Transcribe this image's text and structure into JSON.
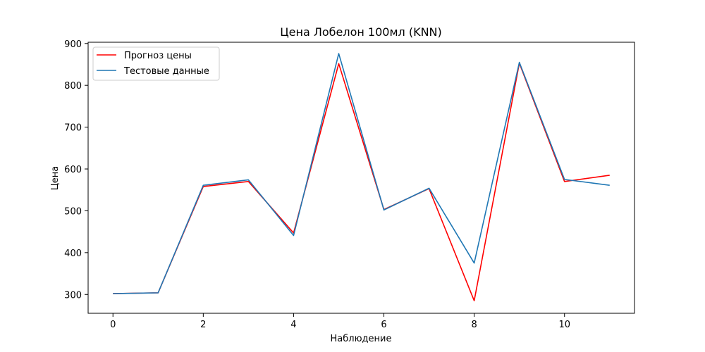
{
  "chart_data": {
    "type": "line",
    "title": "Цена Лобелон 100мл  (KNN)",
    "xlabel": "Наблюдение",
    "ylabel": "Цена",
    "xlim": [
      -0.55,
      11.55
    ],
    "ylim": [
      255,
      903
    ],
    "xticks": [
      0,
      2,
      4,
      6,
      8,
      10
    ],
    "yticks": [
      300,
      400,
      500,
      600,
      700,
      800,
      900
    ],
    "x": [
      0,
      1,
      2,
      3,
      4,
      5,
      6,
      7,
      8,
      9,
      10,
      11
    ],
    "series": [
      {
        "name": "Прогноз цены",
        "color": "#ff0000",
        "values": [
          302,
          304,
          558,
          570,
          447,
          852,
          503,
          553,
          285,
          853,
          570,
          585
        ]
      },
      {
        "name": "Тестовые данные",
        "color": "#1f77b4",
        "values": [
          302,
          304,
          561,
          574,
          441,
          876,
          502,
          554,
          375,
          855,
          575,
          561
        ]
      }
    ],
    "legend": "top-left",
    "grid": false
  }
}
